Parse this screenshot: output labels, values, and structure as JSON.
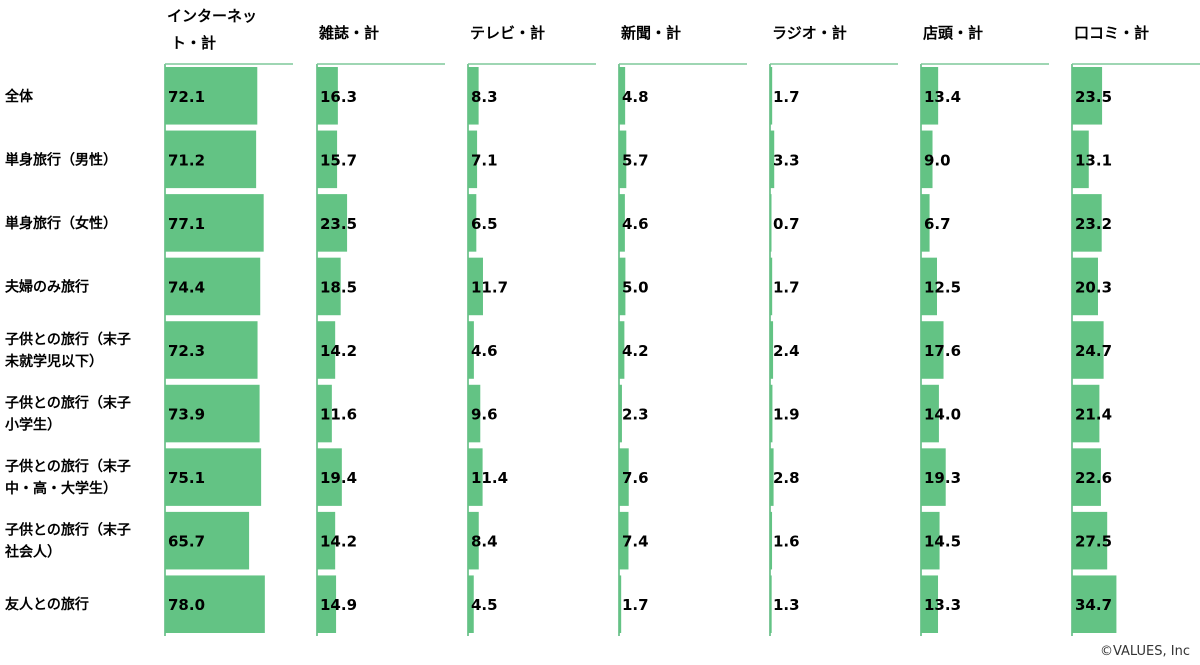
{
  "chart_data": {
    "type": "bar",
    "columns": [
      "インターネット・計",
      "雑誌・計",
      "テレビ・計",
      "新聞・計",
      "ラジオ・計",
      "店頭・計",
      "口コミ・計"
    ],
    "rows": [
      "全体",
      "単身旅行（男性）",
      "単身旅行（女性）",
      "夫婦のみ旅行",
      "子供との旅行（末子未就学児以下）",
      "子供との旅行（末子小学生）",
      "子供との旅行（末子中・高・大学生）",
      "子供との旅行（末子社会人）",
      "友人との旅行"
    ],
    "values": [
      [
        72.1,
        16.3,
        8.3,
        4.8,
        1.7,
        13.4,
        23.5
      ],
      [
        71.2,
        15.7,
        7.1,
        5.7,
        3.3,
        9.0,
        13.1
      ],
      [
        77.1,
        23.5,
        6.5,
        4.6,
        0.7,
        6.7,
        23.2
      ],
      [
        74.4,
        18.5,
        11.7,
        5.0,
        1.7,
        12.5,
        20.3
      ],
      [
        72.3,
        14.2,
        4.6,
        4.2,
        2.4,
        17.6,
        24.7
      ],
      [
        73.9,
        11.6,
        9.6,
        2.3,
        1.9,
        14.0,
        21.4
      ],
      [
        75.1,
        19.4,
        11.4,
        7.6,
        2.8,
        19.3,
        22.6
      ],
      [
        65.7,
        14.2,
        8.4,
        7.4,
        1.6,
        14.5,
        27.5
      ],
      [
        78.0,
        14.9,
        4.5,
        1.7,
        1.3,
        13.3,
        34.7
      ]
    ]
  },
  "colors": {
    "bar": "#63c384",
    "axis": "#7fc89a",
    "bg": "#ffffff"
  },
  "credit": "©VALUES, Inc"
}
